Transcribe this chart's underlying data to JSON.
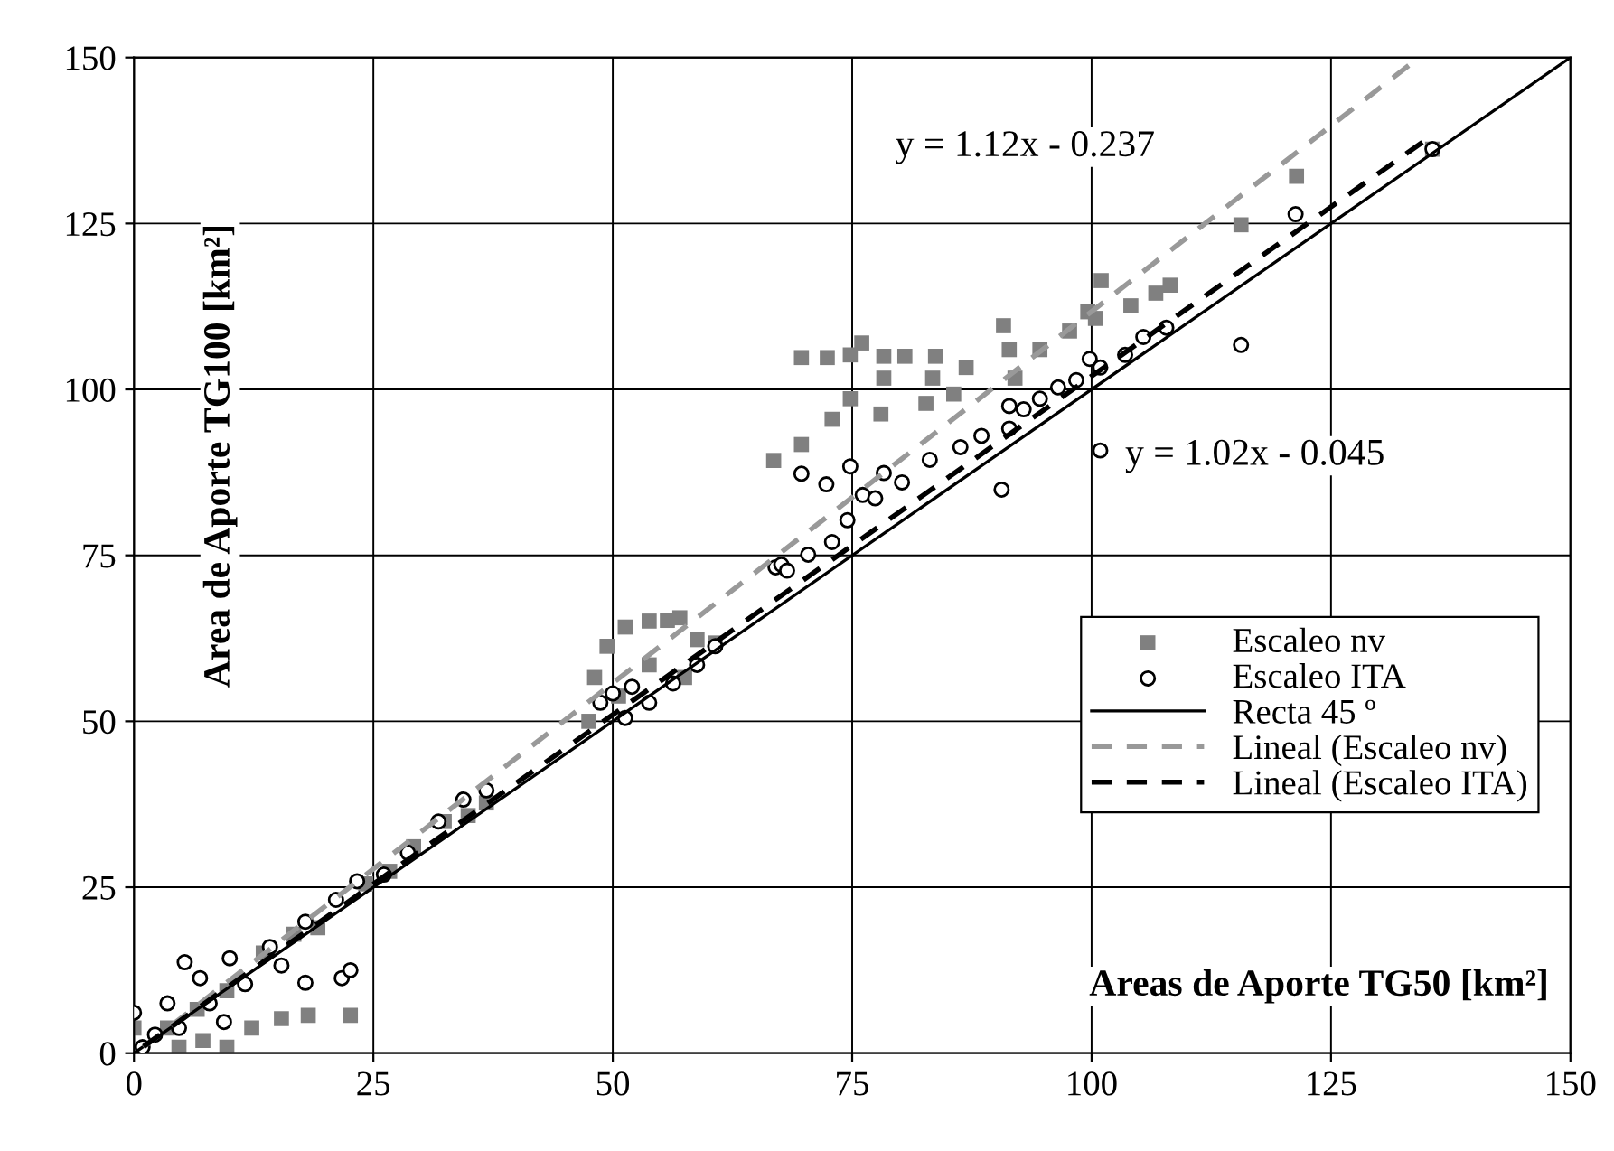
{
  "chart_data": {
    "type": "scatter",
    "xlabel": "Areas de Aporte TG50 [km²]",
    "ylabel": "Area de Aporte TG100 [km²]",
    "xlim": [
      0,
      150
    ],
    "ylim": [
      0,
      150
    ],
    "xticks": [
      0,
      25,
      50,
      75,
      100,
      125,
      150
    ],
    "yticks": [
      0,
      25,
      50,
      75,
      100,
      125,
      150
    ],
    "grid": true,
    "legend": "right",
    "annotations": [
      "y = 1.12x - 0.237",
      "y = 1.02x - 0.045"
    ],
    "series": [
      {
        "name": "Escaleo nv",
        "marker": "square",
        "color": "#808080",
        "x": [
          0,
          3.5,
          4.7,
          7.2,
          9.7,
          12.3,
          15.4,
          18.2,
          22.6,
          6.6,
          9.7,
          13.5,
          16.7,
          19.2,
          24.2,
          26.7,
          29.2,
          32.4,
          34.9,
          36.8,
          47.5,
          48.1,
          49.4,
          50.6,
          51.3,
          53.8,
          53.8,
          55.7,
          57,
          57.5,
          58.8,
          60.7,
          66.8,
          69.7,
          72.9,
          74.8,
          78,
          82.7,
          85.6,
          69.7,
          72.4,
          74.8,
          76,
          78.3,
          80.5,
          83.7,
          83.4,
          78.3,
          86.9,
          90.8,
          91.4,
          92,
          94.6,
          97.7,
          99.6,
          101,
          100.4,
          104.1,
          106.7,
          108.2,
          115.6,
          121.4,
          135.6
        ],
        "values": [
          3.8,
          3.8,
          0.9,
          1.9,
          0.9,
          3.8,
          5.2,
          5.7,
          5.7,
          6.6,
          9.4,
          15.1,
          17.9,
          18.9,
          25.5,
          27.4,
          31.1,
          34.9,
          35.8,
          37.7,
          50,
          56.6,
          61.3,
          53.8,
          64.2,
          65.1,
          58.5,
          65.2,
          65.6,
          56.6,
          62.3,
          61.8,
          89.3,
          91.7,
          95.5,
          98.6,
          96.3,
          97.9,
          99.3,
          104.8,
          104.8,
          105.2,
          107,
          105,
          105,
          105,
          101.7,
          101.7,
          103.3,
          109.6,
          106,
          101.7,
          106,
          108.8,
          111.7,
          116.4,
          110.7,
          112.6,
          114.5,
          115.7,
          124.8,
          132.1,
          136.2
        ]
      },
      {
        "name": "Escaleo ITA",
        "marker": "circle",
        "color": "#000000",
        "x": [
          0,
          0.9,
          2.2,
          3.5,
          4.7,
          5.3,
          6.9,
          7.9,
          9.4,
          10,
          11.6,
          14.2,
          15.4,
          17.9,
          17.9,
          21.1,
          21.7,
          22.6,
          23.3,
          26.1,
          28.6,
          31.8,
          34.4,
          36.8,
          48.7,
          50,
          51.3,
          52,
          53.8,
          56.3,
          58.8,
          60.7,
          67,
          67.6,
          68.2,
          69.7,
          70.4,
          72.3,
          72.9,
          74.5,
          74.8,
          76.1,
          77.4,
          78.3,
          80.2,
          83.1,
          86.3,
          88.5,
          90.6,
          91.4,
          91.4,
          92.9,
          94.6,
          96.5,
          98.4,
          99.8,
          100.9,
          100.9,
          103.5,
          105.4,
          107.8,
          115.6,
          121.3,
          135.6
        ],
        "values": [
          6.1,
          0.9,
          2.8,
          7.5,
          3.8,
          13.7,
          11.3,
          7.5,
          4.7,
          14.3,
          10.4,
          16,
          13.2,
          10.6,
          19.8,
          23.1,
          11.3,
          12.5,
          25.9,
          26.9,
          30.2,
          34.9,
          38.2,
          39.6,
          52.8,
          54.2,
          50.5,
          55.2,
          52.8,
          55.7,
          58.5,
          61.3,
          73.2,
          73.6,
          72.7,
          87.3,
          75.1,
          85.7,
          77,
          80.3,
          88.4,
          84.1,
          83.6,
          87.4,
          86,
          89.4,
          91.3,
          93,
          84.9,
          94.1,
          97.5,
          97,
          98.6,
          100.3,
          101.4,
          104.6,
          103.3,
          90.8,
          105.2,
          107.9,
          109.3,
          106.7,
          126.4,
          136.2
        ]
      },
      {
        "name": "Recta 45 º",
        "type": "line",
        "line_style": "solid",
        "color": "#000000",
        "x": [
          0,
          150
        ],
        "values": [
          0,
          150
        ]
      },
      {
        "name": "Lineal (Escaleo nv)",
        "type": "line",
        "line_style": "dashed",
        "color": "#999999",
        "x": [
          1,
          134
        ],
        "values": [
          0.9,
          149.8
        ]
      },
      {
        "name": "Lineal (Escaleo ITA)",
        "type": "line",
        "line_style": "dashed",
        "color": "#000000",
        "x": [
          1,
          135
        ],
        "values": [
          1.0,
          137.7
        ]
      }
    ]
  }
}
